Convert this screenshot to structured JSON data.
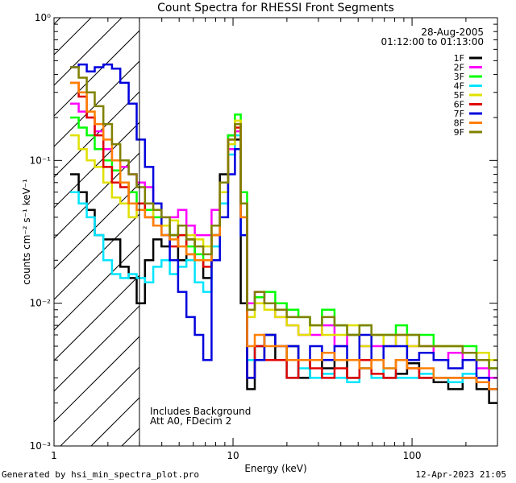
{
  "chart_data": {
    "type": "line",
    "title": "Count Spectra for RHESSI Front Segments",
    "xlabel": "Energy (keV)",
    "ylabel": "counts cm⁻² s⁻¹ keV⁻¹",
    "xscale": "log",
    "yscale": "log",
    "xlim": [
      1.0,
      300
    ],
    "ylim": [
      0.001,
      1.0
    ],
    "x_ticks": [
      1,
      10,
      100
    ],
    "x_tick_labels": [
      "1",
      "10",
      "100"
    ],
    "y_ticks": [
      0.001,
      0.01,
      0.1,
      1.0
    ],
    "y_tick_labels": [
      "10⁻³",
      "10⁻²",
      "10⁻¹",
      "10⁰"
    ],
    "date_label": "28-Aug-2005",
    "time_range_label": "01:12:00 to 01:13:00",
    "annotations": [
      "Includes Background",
      "Att A0, FDecim 2"
    ],
    "shaded_region": {
      "x_from": 1.0,
      "x_to": 3.0,
      "pattern": "diagonal hatch"
    },
    "legend_position": "top-right",
    "x": [
      1.3,
      1.45,
      1.6,
      1.78,
      2.0,
      2.22,
      2.48,
      2.75,
      3.05,
      3.4,
      3.78,
      4.2,
      4.68,
      5.2,
      5.8,
      6.45,
      7.2,
      8.0,
      8.9,
      9.9,
      10.6,
      11.5,
      12.5,
      14.0,
      16.0,
      18.5,
      21.5,
      25.0,
      29.0,
      34.0,
      40.0,
      47.0,
      55.0,
      64.0,
      75.0,
      88.0,
      100,
      120,
      145,
      175,
      210,
      250,
      290
    ],
    "series": [
      {
        "name": "1F",
        "color": "#000000",
        "values": [
          0.08,
          0.06,
          0.045,
          0.03,
          0.028,
          0.028,
          0.018,
          0.015,
          0.01,
          0.02,
          0.028,
          0.025,
          0.03,
          0.02,
          0.028,
          0.02,
          0.015,
          0.03,
          0.08,
          0.15,
          0.14,
          0.01,
          0.0025,
          0.005,
          0.006,
          0.004,
          0.005,
          0.003,
          0.004,
          0.0035,
          0.004,
          0.003,
          0.0035,
          0.004,
          0.003,
          0.0032,
          0.0038,
          0.003,
          0.0028,
          0.0025,
          0.003,
          0.0025,
          0.002
        ]
      },
      {
        "name": "2F",
        "color": "#ff00ff",
        "values": [
          0.25,
          0.22,
          0.2,
          0.16,
          0.12,
          0.1,
          0.09,
          0.08,
          0.07,
          0.065,
          0.05,
          0.04,
          0.04,
          0.045,
          0.035,
          0.03,
          0.03,
          0.045,
          0.06,
          0.12,
          0.16,
          0.05,
          0.01,
          0.012,
          0.01,
          0.008,
          0.007,
          0.006,
          0.006,
          0.007,
          0.005,
          0.006,
          0.005,
          0.005,
          0.005,
          0.006,
          0.005,
          0.005,
          0.004,
          0.0045,
          0.004,
          0.0035,
          0.003
        ]
      },
      {
        "name": "3F",
        "color": "#00ff00",
        "values": [
          0.2,
          0.17,
          0.15,
          0.12,
          0.1,
          0.085,
          0.07,
          0.06,
          0.05,
          0.045,
          0.04,
          0.035,
          0.03,
          0.03,
          0.025,
          0.022,
          0.02,
          0.03,
          0.07,
          0.15,
          0.21,
          0.06,
          0.009,
          0.011,
          0.012,
          0.01,
          0.009,
          0.008,
          0.007,
          0.009,
          0.007,
          0.006,
          0.007,
          0.006,
          0.006,
          0.007,
          0.006,
          0.006,
          0.005,
          0.005,
          0.005,
          0.004,
          0.0035
        ]
      },
      {
        "name": "4F",
        "color": "#00e5ff",
        "values": [
          0.06,
          0.05,
          0.04,
          0.03,
          0.02,
          0.016,
          0.015,
          0.016,
          0.015,
          0.014,
          0.018,
          0.02,
          0.016,
          0.018,
          0.02,
          0.014,
          0.012,
          0.025,
          0.05,
          0.11,
          0.15,
          0.03,
          0.004,
          0.005,
          0.004,
          0.004,
          0.003,
          0.0035,
          0.003,
          0.0032,
          0.003,
          0.0028,
          0.0035,
          0.003,
          0.0035,
          0.003,
          0.003,
          0.0032,
          0.003,
          0.0028,
          0.0032,
          0.0028,
          0.0025
        ]
      },
      {
        "name": "5F",
        "color": "#e0e000",
        "values": [
          0.15,
          0.12,
          0.1,
          0.09,
          0.07,
          0.055,
          0.05,
          0.04,
          0.045,
          0.04,
          0.05,
          0.035,
          0.038,
          0.03,
          0.03,
          0.028,
          0.025,
          0.035,
          0.06,
          0.13,
          0.19,
          0.05,
          0.008,
          0.01,
          0.009,
          0.008,
          0.007,
          0.006,
          0.007,
          0.006,
          0.006,
          0.007,
          0.005,
          0.006,
          0.005,
          0.006,
          0.005,
          0.005,
          0.005,
          0.005,
          0.0045,
          0.0045,
          0.004
        ]
      },
      {
        "name": "6F",
        "color": "#e00000",
        "values": [
          0.35,
          0.28,
          0.2,
          0.15,
          0.09,
          0.07,
          0.065,
          0.05,
          0.05,
          0.04,
          0.035,
          0.03,
          0.025,
          0.03,
          0.022,
          0.02,
          0.018,
          0.03,
          0.07,
          0.14,
          0.17,
          0.04,
          0.003,
          0.005,
          0.004,
          0.004,
          0.003,
          0.004,
          0.0035,
          0.003,
          0.0035,
          0.003,
          0.004,
          0.0032,
          0.003,
          0.004,
          0.0035,
          0.003,
          0.003,
          0.003,
          0.003,
          0.0028,
          0.0025
        ]
      },
      {
        "name": "7F",
        "color": "#0000dd",
        "values": [
          0.45,
          0.47,
          0.42,
          0.45,
          0.47,
          0.44,
          0.35,
          0.25,
          0.14,
          0.09,
          0.05,
          0.03,
          0.02,
          0.012,
          0.008,
          0.006,
          0.004,
          0.02,
          0.04,
          0.08,
          0.12,
          0.03,
          0.003,
          0.004,
          0.006,
          0.005,
          0.005,
          0.004,
          0.005,
          0.004,
          0.005,
          0.004,
          0.006,
          0.004,
          0.005,
          0.005,
          0.004,
          0.0045,
          0.004,
          0.0035,
          0.004,
          0.003,
          0.0025
        ]
      },
      {
        "name": "8F",
        "color": "#ff8000",
        "values": [
          0.35,
          0.3,
          0.22,
          0.18,
          0.14,
          0.1,
          0.07,
          0.05,
          0.045,
          0.04,
          0.035,
          0.03,
          0.028,
          0.025,
          0.022,
          0.02,
          0.02,
          0.03,
          0.07,
          0.14,
          0.18,
          0.04,
          0.005,
          0.006,
          0.005,
          0.005,
          0.004,
          0.004,
          0.004,
          0.0045,
          0.004,
          0.004,
          0.0035,
          0.004,
          0.0035,
          0.004,
          0.0035,
          0.0035,
          0.003,
          0.003,
          0.003,
          0.0028,
          0.0025
        ]
      },
      {
        "name": "9F",
        "color": "#808000",
        "values": [
          0.45,
          0.38,
          0.3,
          0.24,
          0.18,
          0.13,
          0.1,
          0.08,
          0.065,
          0.05,
          0.045,
          0.04,
          0.03,
          0.035,
          0.028,
          0.025,
          0.022,
          0.035,
          0.07,
          0.14,
          0.18,
          0.05,
          0.009,
          0.012,
          0.01,
          0.009,
          0.008,
          0.008,
          0.007,
          0.008,
          0.007,
          0.006,
          0.007,
          0.006,
          0.006,
          0.006,
          0.006,
          0.005,
          0.005,
          0.005,
          0.0045,
          0.004,
          0.0035
        ]
      }
    ]
  },
  "footer": {
    "left": "Generated by hsi_min_spectra_plot.pro",
    "right": "12-Apr-2023 21:05"
  }
}
